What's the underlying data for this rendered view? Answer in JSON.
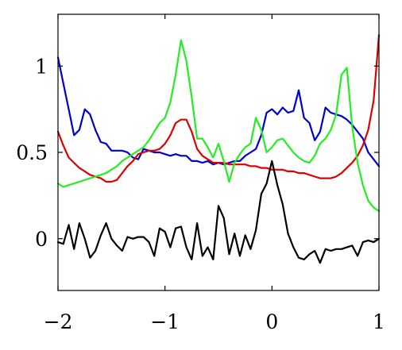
{
  "chart_data": {
    "type": "line",
    "title": "",
    "xlabel": "",
    "ylabel": "",
    "xlim": [
      -2,
      1
    ],
    "ylim": [
      -0.3,
      1.3
    ],
    "xticks": [
      -2,
      -1,
      0,
      1
    ],
    "xtick_labels": [
      "−2",
      "−1",
      "0",
      "1"
    ],
    "yticks": [
      0,
      0.5,
      1
    ],
    "ytick_labels": [
      "0",
      "0.5",
      "1"
    ],
    "grid": false,
    "legend": "none",
    "series": [
      {
        "color": "#0000cc",
        "x": [
          -2,
          -1.95,
          -1.9,
          -1.85,
          -1.8,
          -1.75,
          -1.7,
          -1.65,
          -1.6,
          -1.55,
          -1.5,
          -1.45,
          -1.4,
          -1.35,
          -1.3,
          -1.25,
          -1.2,
          -1.15,
          -1.1,
          -1.05,
          -1.0,
          -0.95,
          -0.9,
          -0.85,
          -0.8,
          -0.75,
          -0.7,
          -0.65,
          -0.6,
          -0.55,
          -0.5,
          -0.45,
          -0.4,
          -0.35,
          -0.3,
          -0.25,
          -0.2,
          -0.15,
          -0.1,
          -0.05,
          0.0,
          0.05,
          0.1,
          0.15,
          0.2,
          0.25,
          0.3,
          0.35,
          0.4,
          0.45,
          0.5,
          0.55,
          0.6,
          0.65,
          0.7,
          0.75,
          0.8,
          0.85,
          0.9,
          0.95,
          1.0
        ],
        "y": [
          1.05,
          0.9,
          0.75,
          0.6,
          0.63,
          0.75,
          0.72,
          0.63,
          0.56,
          0.55,
          0.51,
          0.51,
          0.51,
          0.5,
          0.47,
          0.46,
          0.52,
          0.51,
          0.5,
          0.5,
          0.49,
          0.48,
          0.49,
          0.48,
          0.48,
          0.45,
          0.45,
          0.44,
          0.45,
          0.43,
          0.44,
          0.43,
          0.44,
          0.45,
          0.45,
          0.48,
          0.5,
          0.52,
          0.6,
          0.73,
          0.75,
          0.72,
          0.76,
          0.73,
          0.74,
          0.86,
          0.7,
          0.67,
          0.57,
          0.62,
          0.76,
          0.73,
          0.72,
          0.71,
          0.69,
          0.66,
          0.62,
          0.58,
          0.5,
          0.46,
          0.42
        ]
      },
      {
        "color": "#dd0000",
        "x": [
          -2,
          -1.95,
          -1.9,
          -1.85,
          -1.8,
          -1.75,
          -1.7,
          -1.65,
          -1.6,
          -1.55,
          -1.5,
          -1.45,
          -1.4,
          -1.35,
          -1.3,
          -1.25,
          -1.2,
          -1.15,
          -1.1,
          -1.05,
          -1.0,
          -0.95,
          -0.9,
          -0.85,
          -0.8,
          -0.75,
          -0.7,
          -0.65,
          -0.6,
          -0.55,
          -0.5,
          -0.45,
          -0.4,
          -0.35,
          -0.3,
          -0.25,
          -0.2,
          -0.15,
          -0.1,
          -0.05,
          0.0,
          0.05,
          0.1,
          0.15,
          0.2,
          0.25,
          0.3,
          0.35,
          0.4,
          0.45,
          0.5,
          0.55,
          0.6,
          0.65,
          0.7,
          0.75,
          0.8,
          0.85,
          0.9,
          0.95,
          1.0
        ],
        "y": [
          0.62,
          0.54,
          0.47,
          0.44,
          0.41,
          0.39,
          0.37,
          0.36,
          0.35,
          0.33,
          0.33,
          0.34,
          0.38,
          0.42,
          0.45,
          0.49,
          0.5,
          0.51,
          0.51,
          0.52,
          0.55,
          0.6,
          0.67,
          0.69,
          0.69,
          0.62,
          0.52,
          0.48,
          0.46,
          0.44,
          0.44,
          0.44,
          0.43,
          0.43,
          0.43,
          0.43,
          0.42,
          0.42,
          0.41,
          0.41,
          0.4,
          0.4,
          0.4,
          0.39,
          0.39,
          0.38,
          0.38,
          0.37,
          0.36,
          0.35,
          0.35,
          0.35,
          0.36,
          0.38,
          0.41,
          0.44,
          0.48,
          0.54,
          0.63,
          0.8,
          1.18
        ]
      },
      {
        "color": "#22ee22",
        "x": [
          -2,
          -1.95,
          -1.9,
          -1.85,
          -1.8,
          -1.75,
          -1.7,
          -1.65,
          -1.6,
          -1.55,
          -1.5,
          -1.45,
          -1.4,
          -1.35,
          -1.3,
          -1.25,
          -1.2,
          -1.15,
          -1.1,
          -1.05,
          -1.0,
          -0.95,
          -0.9,
          -0.85,
          -0.8,
          -0.75,
          -0.7,
          -0.65,
          -0.6,
          -0.55,
          -0.5,
          -0.45,
          -0.4,
          -0.35,
          -0.3,
          -0.25,
          -0.2,
          -0.15,
          -0.1,
          -0.05,
          0.0,
          0.05,
          0.1,
          0.15,
          0.2,
          0.25,
          0.3,
          0.35,
          0.4,
          0.45,
          0.5,
          0.55,
          0.6,
          0.65,
          0.7,
          0.75,
          0.8,
          0.85,
          0.9,
          0.95,
          1.0
        ],
        "y": [
          0.32,
          0.3,
          0.31,
          0.32,
          0.33,
          0.34,
          0.35,
          0.36,
          0.37,
          0.38,
          0.4,
          0.42,
          0.45,
          0.47,
          0.49,
          0.51,
          0.53,
          0.57,
          0.62,
          0.67,
          0.7,
          0.79,
          0.95,
          1.15,
          1.03,
          0.82,
          0.58,
          0.58,
          0.53,
          0.47,
          0.55,
          0.45,
          0.33,
          0.44,
          0.49,
          0.53,
          0.55,
          0.7,
          0.63,
          0.5,
          0.53,
          0.57,
          0.58,
          0.54,
          0.5,
          0.47,
          0.45,
          0.44,
          0.48,
          0.55,
          0.58,
          0.63,
          0.72,
          0.95,
          0.99,
          0.65,
          0.44,
          0.31,
          0.22,
          0.18,
          0.16
        ]
      },
      {
        "color": "#000000",
        "x": [
          -2,
          -1.95,
          -1.9,
          -1.85,
          -1.8,
          -1.75,
          -1.7,
          -1.65,
          -1.6,
          -1.55,
          -1.5,
          -1.45,
          -1.4,
          -1.35,
          -1.3,
          -1.25,
          -1.2,
          -1.15,
          -1.1,
          -1.05,
          -1.0,
          -0.95,
          -0.9,
          -0.85,
          -0.8,
          -0.75,
          -0.7,
          -0.65,
          -0.6,
          -0.55,
          -0.5,
          -0.45,
          -0.4,
          -0.35,
          -0.3,
          -0.25,
          -0.2,
          -0.15,
          -0.1,
          -0.05,
          0.0,
          0.05,
          0.1,
          0.15,
          0.2,
          0.25,
          0.3,
          0.35,
          0.4,
          0.45,
          0.5,
          0.55,
          0.6,
          0.65,
          0.7,
          0.75,
          0.8,
          0.85,
          0.9,
          0.95,
          1.0
        ],
        "y": [
          -0.02,
          -0.03,
          0.08,
          -0.06,
          0.09,
          0.0,
          -0.11,
          -0.07,
          0.02,
          0.09,
          0.0,
          -0.04,
          -0.07,
          0.01,
          0.0,
          0.01,
          0.01,
          -0.02,
          -0.1,
          0.06,
          0.04,
          -0.05,
          0.06,
          0.07,
          -0.05,
          -0.12,
          0.09,
          -0.1,
          -0.05,
          -0.12,
          0.19,
          0.12,
          -0.09,
          0.03,
          -0.1,
          0.02,
          -0.06,
          0.05,
          0.26,
          0.32,
          0.45,
          0.31,
          0.2,
          0.03,
          -0.05,
          -0.11,
          -0.12,
          -0.09,
          -0.07,
          -0.14,
          -0.06,
          -0.07,
          -0.06,
          -0.06,
          -0.05,
          -0.04,
          -0.1,
          -0.02,
          -0.01,
          -0.02,
          0.0
        ]
      }
    ]
  }
}
